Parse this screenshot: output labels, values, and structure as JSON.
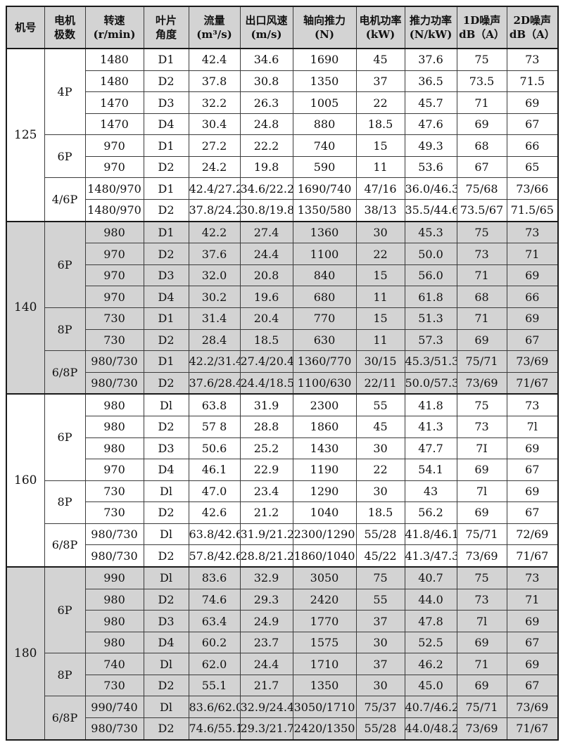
{
  "colors": {
    "band_gray": "#d3d3d3",
    "border_dark": "#1a1a1a",
    "grid_line": "#3c3c3c",
    "text": "#111111"
  },
  "header": {
    "columns": [
      {
        "id": "machine-no",
        "line1": "机号",
        "line2": ""
      },
      {
        "id": "motor-poles",
        "line1": "电机",
        "line2": "极数"
      },
      {
        "id": "speed",
        "line1": "转速",
        "line2": "(r/min)"
      },
      {
        "id": "blade-angle",
        "line1": "叶片",
        "line2": "角度"
      },
      {
        "id": "flow",
        "line1": "流量",
        "line2": "(m³/s)"
      },
      {
        "id": "outlet-velocity",
        "line1": "出口风速",
        "line2": "(m/s)"
      },
      {
        "id": "axial-thrust",
        "line1": "轴向推力",
        "line2": "(N)"
      },
      {
        "id": "motor-power",
        "line1": "电机功率",
        "line2": "(kW)"
      },
      {
        "id": "thrust-power",
        "line1": "推力功率",
        "line2": "(N/kW)"
      },
      {
        "id": "noise-1d",
        "line1": "1D噪声",
        "line2": "dB（A）"
      },
      {
        "id": "noise-2d",
        "line1": "2D噪声",
        "line2": "dB（A）"
      }
    ]
  },
  "row_keys": [
    "speed",
    "blade",
    "flow",
    "velocity",
    "thrust",
    "power",
    "thrust_power",
    "noise_1d",
    "noise_2d"
  ],
  "sections": [
    {
      "model": "125",
      "shaded": false,
      "groups": [
        {
          "poles": "4P",
          "rows": [
            {
              "speed": "1480",
              "blade": "D1",
              "flow": "42.4",
              "velocity": "34.6",
              "thrust": "1690",
              "power": "45",
              "thrust_power": "37.6",
              "noise_1d": "75",
              "noise_2d": "73"
            },
            {
              "speed": "1480",
              "blade": "D2",
              "flow": "37.8",
              "velocity": "30.8",
              "thrust": "1350",
              "power": "37",
              "thrust_power": "36.5",
              "noise_1d": "73.5",
              "noise_2d": "71.5"
            },
            {
              "speed": "1470",
              "blade": "D3",
              "flow": "32.2",
              "velocity": "26.3",
              "thrust": "1005",
              "power": "22",
              "thrust_power": "45.7",
              "noise_1d": "71",
              "noise_2d": "69"
            },
            {
              "speed": "1470",
              "blade": "D4",
              "flow": "30.4",
              "velocity": "24.8",
              "thrust": "880",
              "power": "18.5",
              "thrust_power": "47.6",
              "noise_1d": "69",
              "noise_2d": "67"
            }
          ]
        },
        {
          "poles": "6P",
          "rows": [
            {
              "speed": "970",
              "blade": "D1",
              "flow": "27.2",
              "velocity": "22.2",
              "thrust": "740",
              "power": "15",
              "thrust_power": "49.3",
              "noise_1d": "68",
              "noise_2d": "66"
            },
            {
              "speed": "970",
              "blade": "D2",
              "flow": "24.2",
              "velocity": "19.8",
              "thrust": "590",
              "power": "11",
              "thrust_power": "53.6",
              "noise_1d": "67",
              "noise_2d": "65"
            }
          ]
        },
        {
          "poles": "4/6P",
          "rows": [
            {
              "speed": "1480/970",
              "blade": "D1",
              "flow": "42.4/27.2",
              "velocity": "34.6/22.2",
              "thrust": "1690/740",
              "power": "47/16",
              "thrust_power": "36.0/46.3",
              "noise_1d": "75/68",
              "noise_2d": "73/66"
            },
            {
              "speed": "1480/970",
              "blade": "D2",
              "flow": "37.8/24.2",
              "velocity": "30.8/19.8",
              "thrust": "1350/580",
              "power": "38/13",
              "thrust_power": "35.5/44.6",
              "noise_1d": "73.5/67",
              "noise_2d": "71.5/65"
            }
          ]
        }
      ]
    },
    {
      "model": "140",
      "shaded": true,
      "groups": [
        {
          "poles": "6P",
          "rows": [
            {
              "speed": "980",
              "blade": "D1",
              "flow": "42.2",
              "velocity": "27.4",
              "thrust": "1360",
              "power": "30",
              "thrust_power": "45.3",
              "noise_1d": "75",
              "noise_2d": "73"
            },
            {
              "speed": "970",
              "blade": "D2",
              "flow": "37.6",
              "velocity": "24.4",
              "thrust": "1100",
              "power": "22",
              "thrust_power": "50.0",
              "noise_1d": "73",
              "noise_2d": "71"
            },
            {
              "speed": "970",
              "blade": "D3",
              "flow": "32.0",
              "velocity": "20.8",
              "thrust": "840",
              "power": "15",
              "thrust_power": "56.0",
              "noise_1d": "71",
              "noise_2d": "69"
            },
            {
              "speed": "970",
              "blade": "D4",
              "flow": "30.2",
              "velocity": "19.6",
              "thrust": "680",
              "power": "11",
              "thrust_power": "61.8",
              "noise_1d": "68",
              "noise_2d": "66"
            }
          ]
        },
        {
          "poles": "8P",
          "rows": [
            {
              "speed": "730",
              "blade": "D1",
              "flow": "31.4",
              "velocity": "20.4",
              "thrust": "770",
              "power": "15",
              "thrust_power": "51.3",
              "noise_1d": "71",
              "noise_2d": "69"
            },
            {
              "speed": "730",
              "blade": "D2",
              "flow": "28.4",
              "velocity": "18.5",
              "thrust": "630",
              "power": "11",
              "thrust_power": "57.3",
              "noise_1d": "69",
              "noise_2d": "67"
            }
          ]
        },
        {
          "poles": "6/8P",
          "rows": [
            {
              "speed": "980/730",
              "blade": "D1",
              "flow": "42.2/31.4",
              "velocity": "27.4/20.4",
              "thrust": "1360/770",
              "power": "30/15",
              "thrust_power": "45.3/51.3",
              "noise_1d": "75/71",
              "noise_2d": "73/69"
            },
            {
              "speed": "980/730",
              "blade": "D2",
              "flow": "37.6/28.4",
              "velocity": "24.4/18.5",
              "thrust": "1100/630",
              "power": "22/11",
              "thrust_power": "50.0/57.3",
              "noise_1d": "73/69",
              "noise_2d": "71/67"
            }
          ]
        }
      ]
    },
    {
      "model": "160",
      "shaded": false,
      "groups": [
        {
          "poles": "6P",
          "rows": [
            {
              "speed": "980",
              "blade": "Dl",
              "flow": "63.8",
              "velocity": "31.9",
              "thrust": "2300",
              "power": "55",
              "thrust_power": "41.8",
              "noise_1d": "75",
              "noise_2d": "73"
            },
            {
              "speed": "980",
              "blade": "D2",
              "flow": "57 8",
              "velocity": "28.8",
              "thrust": "1860",
              "power": "45",
              "thrust_power": "41.3",
              "noise_1d": "73",
              "noise_2d": "7l"
            },
            {
              "speed": "980",
              "blade": "D3",
              "flow": "50.6",
              "velocity": "25.2",
              "thrust": "1430",
              "power": "30",
              "thrust_power": "47.7",
              "noise_1d": "7I",
              "noise_2d": "69"
            },
            {
              "speed": "970",
              "blade": "D4",
              "flow": "46.1",
              "velocity": "22.9",
              "thrust": "1190",
              "power": "22",
              "thrust_power": "54.1",
              "noise_1d": "69",
              "noise_2d": "67"
            }
          ]
        },
        {
          "poles": "8P",
          "rows": [
            {
              "speed": "730",
              "blade": "Dl",
              "flow": "47.0",
              "velocity": "23.4",
              "thrust": "1290",
              "power": "30",
              "thrust_power": "43",
              "noise_1d": "7l",
              "noise_2d": "69"
            },
            {
              "speed": "730",
              "blade": "D2",
              "flow": "42.6",
              "velocity": "21.2",
              "thrust": "1040",
              "power": "18.5",
              "thrust_power": "56.2",
              "noise_1d": "69",
              "noise_2d": "67"
            }
          ]
        },
        {
          "poles": "6/8P",
          "rows": [
            {
              "speed": "980/730",
              "blade": "Dl",
              "flow": "63.8/42.6",
              "velocity": "31.9/21.2",
              "thrust": "2300/1290",
              "power": "55/28",
              "thrust_power": "41.8/46.1",
              "noise_1d": "75/71",
              "noise_2d": "72/69"
            },
            {
              "speed": "980/730",
              "blade": "D2",
              "flow": "57.8/42.6",
              "velocity": "28.8/21.2",
              "thrust": "1860/1040",
              "power": "45/22",
              "thrust_power": "41.3/47.3",
              "noise_1d": "73/69",
              "noise_2d": "71/67"
            }
          ]
        }
      ]
    },
    {
      "model": "180",
      "shaded": true,
      "groups": [
        {
          "poles": "6P",
          "rows": [
            {
              "speed": "990",
              "blade": "Dl",
              "flow": "83.6",
              "velocity": "32.9",
              "thrust": "3050",
              "power": "75",
              "thrust_power": "40.7",
              "noise_1d": "75",
              "noise_2d": "73"
            },
            {
              "speed": "980",
              "blade": "D2",
              "flow": "74.6",
              "velocity": "29.3",
              "thrust": "2420",
              "power": "55",
              "thrust_power": "44.0",
              "noise_1d": "73",
              "noise_2d": "71"
            },
            {
              "speed": "980",
              "blade": "D3",
              "flow": "63.4",
              "velocity": "24.9",
              "thrust": "1770",
              "power": "37",
              "thrust_power": "47.8",
              "noise_1d": "7l",
              "noise_2d": "69"
            },
            {
              "speed": "980",
              "blade": "D4",
              "flow": "60.2",
              "velocity": "23.7",
              "thrust": "1575",
              "power": "30",
              "thrust_power": "52.5",
              "noise_1d": "69",
              "noise_2d": "67"
            }
          ]
        },
        {
          "poles": "8P",
          "rows": [
            {
              "speed": "740",
              "blade": "Dl",
              "flow": "62.0",
              "velocity": "24.4",
              "thrust": "1710",
              "power": "37",
              "thrust_power": "46.2",
              "noise_1d": "71",
              "noise_2d": "69"
            },
            {
              "speed": "730",
              "blade": "D2",
              "flow": "55.1",
              "velocity": "21.7",
              "thrust": "1350",
              "power": "30",
              "thrust_power": "45.0",
              "noise_1d": "69",
              "noise_2d": "67"
            }
          ]
        },
        {
          "poles": "6/8P",
          "rows": [
            {
              "speed": "990/740",
              "blade": "Dl",
              "flow": "83.6/62.0",
              "velocity": "32.9/24.4",
              "thrust": "3050/1710",
              "power": "75/37",
              "thrust_power": "40.7/46.2",
              "noise_1d": "75/71",
              "noise_2d": "73/69"
            },
            {
              "speed": "980/730",
              "blade": "D2",
              "flow": "74.6/55.1",
              "velocity": "29.3/21.7",
              "thrust": "2420/1350",
              "power": "55/28",
              "thrust_power": "44.0/48.2",
              "noise_1d": "73/69",
              "noise_2d": "71/67"
            }
          ]
        }
      ]
    }
  ]
}
